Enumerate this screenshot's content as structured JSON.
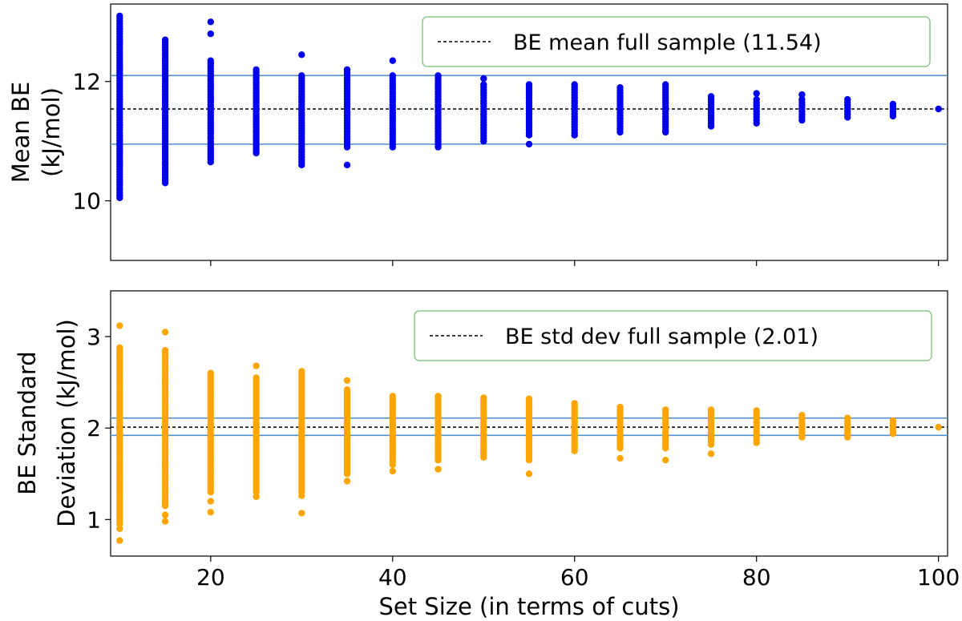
{
  "chart_data": [
    {
      "id": "mean",
      "type": "scatter",
      "ylabel_lines": [
        "Mean BE",
        "(kJ/mol)"
      ],
      "ylim": [
        9.0,
        13.3
      ],
      "yticks": [
        10,
        12
      ],
      "ytick_labels": [
        "10",
        "12"
      ],
      "xlim": [
        9,
        101
      ],
      "xticks": [
        20,
        40,
        60,
        80,
        100
      ],
      "xtick_labels": [],
      "color": "#0000ee",
      "reference": {
        "label": "BE mean full sample (11.54)",
        "value": 11.54
      },
      "bands": [
        10.95,
        12.1
      ],
      "band_color": "#4f8fce",
      "series": [
        {
          "x": 10,
          "min": 10.05,
          "max": 13.1,
          "outliers": []
        },
        {
          "x": 15,
          "min": 10.3,
          "max": 12.7,
          "outliers": []
        },
        {
          "x": 20,
          "min": 10.65,
          "max": 12.35,
          "outliers": [
            12.8,
            13.0
          ]
        },
        {
          "x": 25,
          "min": 10.8,
          "max": 12.2,
          "outliers": []
        },
        {
          "x": 30,
          "min": 10.6,
          "max": 12.1,
          "outliers": [
            12.45
          ]
        },
        {
          "x": 35,
          "min": 10.9,
          "max": 12.2,
          "outliers": [
            10.6
          ]
        },
        {
          "x": 40,
          "min": 10.9,
          "max": 12.1,
          "outliers": [
            12.35
          ]
        },
        {
          "x": 45,
          "min": 10.9,
          "max": 12.1,
          "outliers": []
        },
        {
          "x": 50,
          "min": 11.0,
          "max": 11.95,
          "outliers": [
            12.05
          ]
        },
        {
          "x": 55,
          "min": 11.1,
          "max": 11.95,
          "outliers": [
            10.95
          ]
        },
        {
          "x": 60,
          "min": 11.1,
          "max": 11.95,
          "outliers": []
        },
        {
          "x": 65,
          "min": 11.15,
          "max": 11.9,
          "outliers": []
        },
        {
          "x": 70,
          "min": 11.15,
          "max": 11.95,
          "outliers": []
        },
        {
          "x": 75,
          "min": 11.25,
          "max": 11.75,
          "outliers": []
        },
        {
          "x": 80,
          "min": 11.3,
          "max": 11.7,
          "outliers": [
            11.8
          ]
        },
        {
          "x": 85,
          "min": 11.35,
          "max": 11.7,
          "outliers": [
            11.78
          ]
        },
        {
          "x": 90,
          "min": 11.4,
          "max": 11.7,
          "outliers": []
        },
        {
          "x": 95,
          "min": 11.42,
          "max": 11.62,
          "outliers": []
        },
        {
          "x": 100,
          "min": 11.54,
          "max": 11.54,
          "outliers": []
        }
      ]
    },
    {
      "id": "std",
      "type": "scatter",
      "ylabel_lines": [
        "BE Standard",
        "Deviation (kJ/mol)"
      ],
      "ylim": [
        0.6,
        3.5
      ],
      "yticks": [
        1,
        2,
        3
      ],
      "ytick_labels": [
        "1",
        "2",
        "3"
      ],
      "xlim": [
        9,
        101
      ],
      "xticks": [
        20,
        40,
        60,
        80,
        100
      ],
      "xtick_labels": [
        "20",
        "40",
        "60",
        "80",
        "100"
      ],
      "xlabel": "Set Size (in terms of cuts)",
      "color": "#ffa500",
      "reference": {
        "label": "BE std dev full sample (2.01)",
        "value": 2.01
      },
      "bands": [
        1.92,
        2.11
      ],
      "band_color": "#4f8fce",
      "series": [
        {
          "x": 10,
          "min": 0.95,
          "max": 2.88,
          "outliers": [
            0.77,
            0.9,
            3.12
          ]
        },
        {
          "x": 15,
          "min": 1.15,
          "max": 2.85,
          "outliers": [
            0.98,
            1.05,
            3.05
          ]
        },
        {
          "x": 20,
          "min": 1.3,
          "max": 2.6,
          "outliers": [
            1.08,
            1.2
          ]
        },
        {
          "x": 25,
          "min": 1.3,
          "max": 2.55,
          "outliers": [
            1.25,
            2.68
          ]
        },
        {
          "x": 30,
          "min": 1.3,
          "max": 2.62,
          "outliers": [
            1.07,
            1.26
          ]
        },
        {
          "x": 35,
          "min": 1.5,
          "max": 2.42,
          "outliers": [
            1.42,
            2.52
          ]
        },
        {
          "x": 40,
          "min": 1.6,
          "max": 2.35,
          "outliers": [
            1.53
          ]
        },
        {
          "x": 45,
          "min": 1.65,
          "max": 2.35,
          "outliers": [
            1.55
          ]
        },
        {
          "x": 50,
          "min": 1.68,
          "max": 2.33,
          "outliers": []
        },
        {
          "x": 55,
          "min": 1.65,
          "max": 2.32,
          "outliers": [
            1.5
          ]
        },
        {
          "x": 60,
          "min": 1.75,
          "max": 2.27,
          "outliers": []
        },
        {
          "x": 65,
          "min": 1.78,
          "max": 2.23,
          "outliers": [
            1.67
          ]
        },
        {
          "x": 70,
          "min": 1.78,
          "max": 2.2,
          "outliers": [
            1.65
          ]
        },
        {
          "x": 75,
          "min": 1.82,
          "max": 2.2,
          "outliers": [
            1.72
          ]
        },
        {
          "x": 80,
          "min": 1.84,
          "max": 2.19,
          "outliers": []
        },
        {
          "x": 85,
          "min": 1.9,
          "max": 2.14,
          "outliers": []
        },
        {
          "x": 90,
          "min": 1.9,
          "max": 2.11,
          "outliers": []
        },
        {
          "x": 95,
          "min": 1.94,
          "max": 2.08,
          "outliers": []
        },
        {
          "x": 100,
          "min": 2.01,
          "max": 2.01,
          "outliers": []
        }
      ]
    }
  ]
}
